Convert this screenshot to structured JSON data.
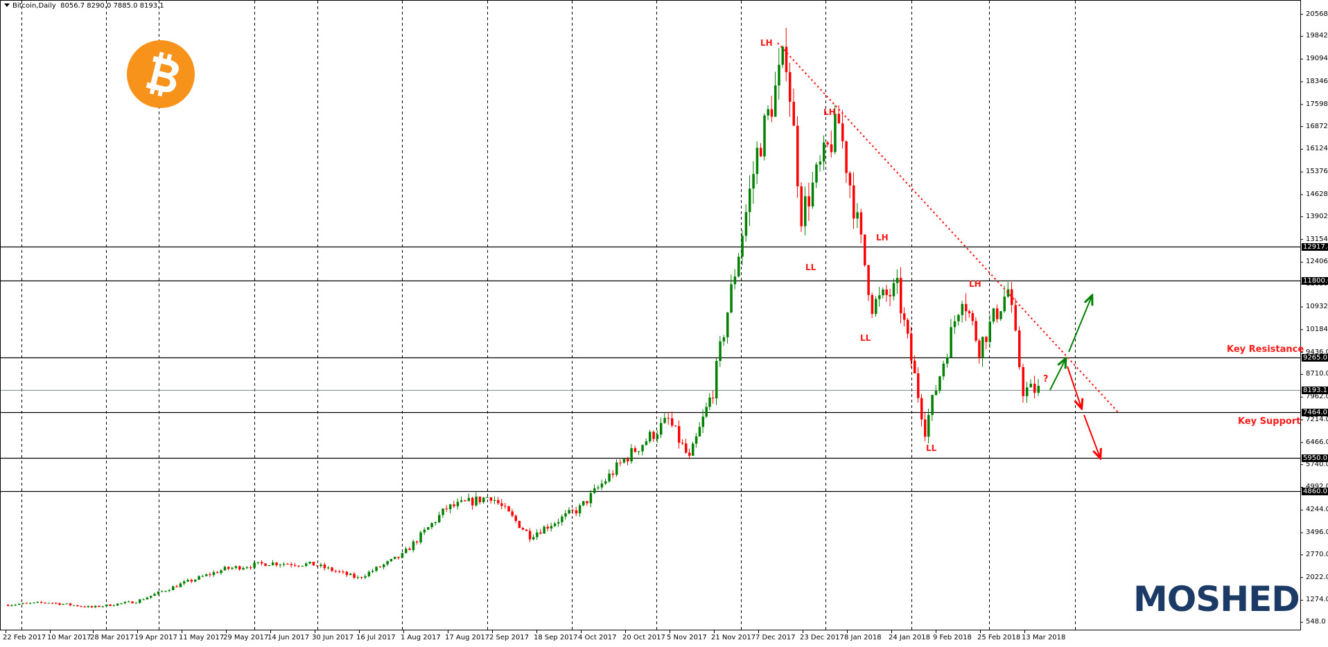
{
  "window": {
    "symbol_header": "Bitcoin,Daily",
    "ohlc": "8056.7 8290.0 7885.0 8193.1"
  },
  "branding": {
    "top_left_logo": "bitcoin-logo",
    "bottom_right_logo": "MOSHED",
    "bottom_right_color": "#1b3a66",
    "bitcoin_color": "#f7931a"
  },
  "colors": {
    "bull": "#008000",
    "bear": "#ff0000",
    "annotation": "#ff1a1a",
    "grid": "#000000",
    "current_price_line": "#7f8c93"
  },
  "chart_data": {
    "type": "candlestick",
    "title": "Bitcoin, Daily",
    "xlabel": "",
    "ylabel": "",
    "ylim": [
      548.0,
      20568.0
    ],
    "last_bar": {
      "open": 8056.7,
      "high": 8290.0,
      "low": 7885.0,
      "close": 8193.1
    },
    "y_ticks": [
      "20568.0",
      "19842.0",
      "19094.0",
      "18346.0",
      "17598.0",
      "16872.0",
      "16124.0",
      "15376.0",
      "14628.0",
      "13902.0",
      "13154.0",
      "12406.0",
      "11680.0",
      "10932.0",
      "10184.0",
      "9436.0",
      "8710.0",
      "7962.0",
      "7214.0",
      "6466.0",
      "5740.0",
      "4992.0",
      "4244.0",
      "3496.0",
      "2770.0",
      "2022.0",
      "1274.0",
      "548.0"
    ],
    "x_ticks": [
      "22 Feb 2017",
      "10 Mar 2017",
      "28 Mar 2017",
      "19 Apr 2017",
      "11 May 2017",
      "29 May 2017",
      "14 Jun 2017",
      "30 Jun 2017",
      "16 Jul 2017",
      "1 Aug 2017",
      "17 Aug 2017",
      "2 Sep 2017",
      "18 Sep 2017",
      "4 Oct 2017",
      "20 Oct 2017",
      "5 Nov 2017",
      "21 Nov 2017",
      "7 Dec 2017",
      "23 Dec 2017",
      "8 Jan 2018",
      "24 Jan 2018",
      "9 Feb 2018",
      "25 Feb 2018",
      "13 Mar 2018"
    ],
    "horizontal_levels": [
      {
        "price": 12917.8,
        "label": "12917.8"
      },
      {
        "price": 11800.0,
        "label": "11800.0"
      },
      {
        "price": 9265.0,
        "label": "9265.0",
        "note": "Key Resistance"
      },
      {
        "price": 7464.0,
        "label": "7464.0",
        "note": "Key Support"
      },
      {
        "price": 5950.0,
        "label": "5950.0"
      },
      {
        "price": 4860.0,
        "label": "4860.0"
      }
    ],
    "current_price": {
      "price": 8193.1,
      "label": "8193.1"
    },
    "trendline": {
      "style": "dotted",
      "color": "#ff1a1a",
      "from": {
        "date": "17 Dec 2017",
        "price": 19100
      },
      "to": {
        "date": "late Mar 2018",
        "price": 7650
      }
    },
    "swing_labels": [
      {
        "text": "LH",
        "date": "16 Dec 2017",
        "price": 19400
      },
      {
        "text": "LH",
        "date": "5 Jan 2018",
        "price": 17400
      },
      {
        "text": "LL",
        "date": "29 Dec 2017",
        "price": 12000
      },
      {
        "text": "LH",
        "date": "14 Jan 2018",
        "price": 13800
      },
      {
        "text": "LL",
        "date": "16 Jan 2018",
        "price": 10000
      },
      {
        "text": "LL",
        "date": "5 Feb 2018",
        "price": 6900
      },
      {
        "text": "LH",
        "date": "20 Feb 2018",
        "price": 11900
      }
    ],
    "scenario_annotations": [
      {
        "text": "?",
        "color": "#ff1a1a"
      },
      {
        "type": "arrow",
        "color": "#008000",
        "direction": "up",
        "from_price": 8250,
        "to_price": 11500
      },
      {
        "type": "arrow",
        "color": "#ff0000",
        "direction": "down",
        "from_price": 9300,
        "to_price": 6000
      }
    ],
    "text_annotations": [
      "Key Resistance",
      "Key Support"
    ],
    "key_path": [
      [
        "22 Feb 2017",
        1120
      ],
      [
        "10 Mar 2017",
        1200
      ],
      [
        "28 Mar 2017",
        1040
      ],
      [
        "19 Apr 2017",
        1230
      ],
      [
        "11 May 2017",
        1800
      ],
      [
        "29 May 2017",
        2300
      ],
      [
        "14 Jun 2017",
        2500
      ],
      [
        "30 Jun 2017",
        2450
      ],
      [
        "16 Jul 2017",
        2000
      ],
      [
        "1 Aug 2017",
        2750
      ],
      [
        "17 Aug 2017",
        4300
      ],
      [
        "2 Sep 2017",
        4700
      ],
      [
        "15 Sep 2017",
        3400
      ],
      [
        "4 Oct 2017",
        4300
      ],
      [
        "20 Oct 2017",
        5900
      ],
      [
        "5 Nov 2017",
        7200
      ],
      [
        "12 Nov 2017",
        5900
      ],
      [
        "21 Nov 2017",
        8200
      ],
      [
        "7 Dec 2017",
        16000
      ],
      [
        "17 Dec 2017",
        19300
      ],
      [
        "23 Dec 2017",
        14000
      ],
      [
        "6 Jan 2018",
        17000
      ],
      [
        "17 Jan 2018",
        11000
      ],
      [
        "28 Jan 2018",
        11500
      ],
      [
        "6 Feb 2018",
        6900
      ],
      [
        "20 Feb 2018",
        11400
      ],
      [
        "25 Feb 2018",
        9600
      ],
      [
        "5 Mar 2018",
        11500
      ],
      [
        "13 Mar 2018",
        8200
      ],
      [
        "18 Mar 2018",
        8193.1
      ]
    ]
  }
}
